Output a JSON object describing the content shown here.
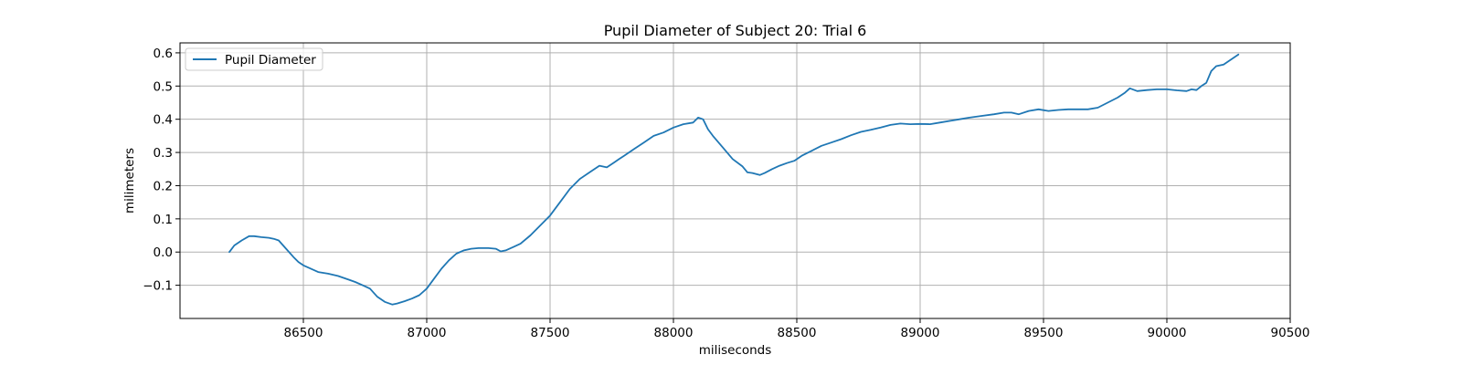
{
  "chart_data": {
    "type": "line",
    "title": "Pupil Diameter of Subject 20: Trial 6",
    "xlabel": "miliseconds",
    "ylabel": "milimeters",
    "xlim": [
      86000,
      90500
    ],
    "ylim": [
      -0.2,
      0.63
    ],
    "xticks": [
      86500,
      87000,
      87500,
      88000,
      88500,
      89000,
      89500,
      90000,
      90500
    ],
    "yticks": [
      -0.1,
      0.0,
      0.1,
      0.2,
      0.3,
      0.4,
      0.5,
      0.6
    ],
    "ytick_labels": [
      "−0.1",
      "0.0",
      "0.1",
      "0.2",
      "0.3",
      "0.4",
      "0.5",
      "0.6"
    ],
    "grid": true,
    "legend_position": "top-left",
    "series": [
      {
        "name": "Pupil Diameter",
        "color": "#1f77b4",
        "x": [
          86200,
          86220,
          86250,
          86280,
          86300,
          86330,
          86360,
          86380,
          86400,
          86430,
          86460,
          86480,
          86500,
          86530,
          86560,
          86600,
          86640,
          86680,
          86710,
          86740,
          86770,
          86800,
          86830,
          86860,
          86880,
          86910,
          86940,
          86970,
          87000,
          87030,
          87060,
          87090,
          87120,
          87150,
          87180,
          87210,
          87250,
          87280,
          87300,
          87320,
          87350,
          87380,
          87420,
          87460,
          87500,
          87540,
          87580,
          87620,
          87660,
          87700,
          87730,
          87760,
          87780,
          87800,
          87840,
          87880,
          87920,
          87960,
          88000,
          88040,
          88080,
          88100,
          88120,
          88140,
          88160,
          88200,
          88240,
          88280,
          88300,
          88320,
          88350,
          88370,
          88400,
          88430,
          88460,
          88490,
          88520,
          88560,
          88600,
          88640,
          88680,
          88720,
          88760,
          88800,
          88840,
          88880,
          88920,
          88960,
          89000,
          89040,
          89080,
          89120,
          89160,
          89200,
          89250,
          89300,
          89340,
          89370,
          89400,
          89440,
          89480,
          89520,
          89560,
          89600,
          89640,
          89680,
          89720,
          89760,
          89800,
          89830,
          89850,
          89880,
          89920,
          89960,
          90000,
          90040,
          90080,
          90100,
          90120,
          90140,
          90160,
          90180,
          90200,
          90230,
          90260,
          90290
        ],
        "y": [
          0.0,
          0.02,
          0.035,
          0.048,
          0.048,
          0.045,
          0.043,
          0.04,
          0.035,
          0.01,
          -0.015,
          -0.03,
          -0.04,
          -0.05,
          -0.06,
          -0.065,
          -0.072,
          -0.082,
          -0.09,
          -0.1,
          -0.11,
          -0.135,
          -0.15,
          -0.158,
          -0.155,
          -0.148,
          -0.14,
          -0.13,
          -0.11,
          -0.08,
          -0.05,
          -0.025,
          -0.005,
          0.005,
          0.01,
          0.012,
          0.012,
          0.01,
          0.002,
          0.005,
          0.015,
          0.025,
          0.05,
          0.08,
          0.11,
          0.15,
          0.19,
          0.22,
          0.24,
          0.26,
          0.255,
          0.27,
          0.28,
          0.29,
          0.31,
          0.33,
          0.35,
          0.36,
          0.375,
          0.385,
          0.39,
          0.405,
          0.4,
          0.37,
          0.35,
          0.315,
          0.28,
          0.258,
          0.24,
          0.238,
          0.232,
          0.238,
          0.25,
          0.26,
          0.268,
          0.275,
          0.29,
          0.305,
          0.32,
          0.33,
          0.34,
          0.352,
          0.362,
          0.368,
          0.375,
          0.383,
          0.387,
          0.385,
          0.386,
          0.385,
          0.39,
          0.395,
          0.4,
          0.405,
          0.41,
          0.415,
          0.42,
          0.42,
          0.415,
          0.425,
          0.43,
          0.425,
          0.428,
          0.43,
          0.43,
          0.43,
          0.435,
          0.45,
          0.465,
          0.48,
          0.493,
          0.485,
          0.488,
          0.49,
          0.49,
          0.487,
          0.485,
          0.49,
          0.488,
          0.5,
          0.51,
          0.545,
          0.56,
          0.565,
          0.58,
          0.595
        ]
      }
    ]
  }
}
